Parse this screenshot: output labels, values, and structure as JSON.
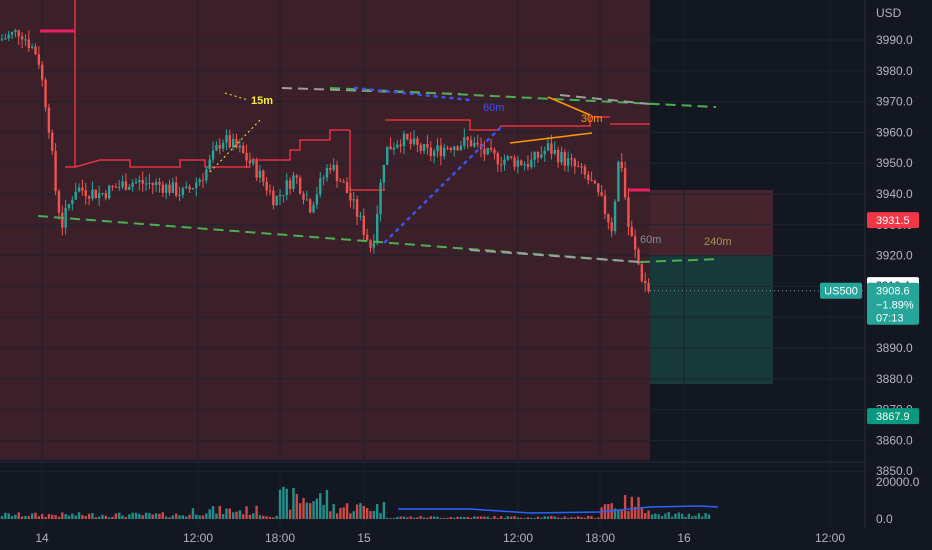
{
  "chart_data": {
    "type": "candlestick",
    "symbol": "US500",
    "currency": "USD",
    "ylim": [
      3842,
      3998
    ],
    "y_ticks": [
      "3990.0",
      "3980.0",
      "3970.0",
      "3960.0",
      "3950.0",
      "3940.0",
      "3930.0",
      "3920.0",
      "3910.0",
      "3900.0",
      "3890.0",
      "3880.0",
      "3870.0",
      "3860.0",
      "3850.0"
    ],
    "x_ticks": [
      "14",
      "12:00",
      "18:00",
      "15",
      "12:00",
      "18:00",
      "16",
      "12:00"
    ],
    "volume_ticks": [
      "20000.0",
      "0.0"
    ],
    "volume_ylim": [
      0,
      28000
    ],
    "last_price": {
      "symbol": "US500",
      "value": 3908.6,
      "value_label": "3908.6",
      "change": "−1.89%",
      "countdown": "07:13",
      "color": "#26a69a"
    },
    "price_tags": [
      {
        "label": "3931.5",
        "value": 3931.5,
        "color": "#f23645"
      },
      {
        "label": "3910.4",
        "value": 3910.4,
        "color": "#ffffff"
      },
      {
        "label": "3867.9",
        "value": 3867.9,
        "color": "#089981"
      }
    ],
    "annotations": [
      {
        "text": "15m",
        "color": "#ffeb3b"
      },
      {
        "text": "60m",
        "color": "#3f51f5"
      },
      {
        "text": "30m",
        "color": "#ff9800"
      },
      {
        "text": "60m",
        "color": "#8a8d96"
      },
      {
        "text": "240m",
        "color": "#a39a4e"
      }
    ],
    "position": {
      "side": "short",
      "entry": 3910.4,
      "stop": 3931.5,
      "target": 3867.9
    },
    "up_color": "#26a69a",
    "down_color": "#ef5350"
  }
}
